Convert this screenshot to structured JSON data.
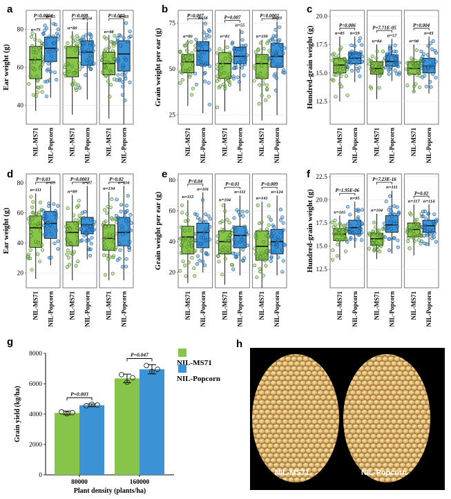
{
  "colors": {
    "ms71": "#86c44a",
    "popcorn": "#3b93d6",
    "ms71_dark": "#3b6b1e",
    "popcorn_dark": "#0f4a86",
    "grid": "#e6e6e6"
  },
  "chart_data": [
    {
      "panel": "a",
      "type": "box",
      "ylabel": "Ear weight (g)",
      "ylim": [
        30,
        90
      ],
      "yticks": [
        40,
        60,
        80
      ],
      "categories": [
        "NIL-MS71",
        "NIL-Popcorn"
      ],
      "groups": [
        {
          "p": "P=0.0004",
          "n": [
            "n=75",
            "n=55"
          ],
          "boxes": [
            {
              "min": 37,
              "q1": 54,
              "med": 64,
              "q3": 71,
              "max": 78
            },
            {
              "min": 44,
              "q1": 63,
              "med": 70,
              "q3": 76,
              "max": 85
            }
          ]
        },
        {
          "p": "P=0.008",
          "n": [
            "n=80",
            "n=54"
          ],
          "boxes": [
            {
              "min": 35,
              "q1": 55,
              "med": 65,
              "q3": 71,
              "max": 79
            },
            {
              "min": 43,
              "q1": 61,
              "med": 68,
              "q3": 74,
              "max": 84
            }
          ]
        },
        {
          "p": "P=0.002",
          "n": [
            "n=98",
            "n=83"
          ],
          "boxes": [
            {
              "min": 33,
              "q1": 56,
              "med": 62,
              "q3": 68,
              "max": 77
            },
            {
              "min": 30,
              "q1": 58,
              "med": 67,
              "q3": 74,
              "max": 85
            }
          ]
        }
      ]
    },
    {
      "panel": "b",
      "type": "box",
      "ylabel": "Grain weight per ear (g)",
      "ylim": [
        20,
        82
      ],
      "yticks": [
        25,
        50,
        75
      ],
      "categories": [
        "NIL-MS71",
        "NIL-Popcorn"
      ],
      "groups": [
        {
          "p": "P=0.007",
          "n": [
            "n=80",
            "n=58"
          ],
          "boxes": [
            {
              "min": 30,
              "q1": 48,
              "med": 54,
              "q3": 58,
              "max": 66
            },
            {
              "min": 26,
              "q1": 52,
              "med": 60,
              "q3": 65,
              "max": 76
            }
          ]
        },
        {
          "p": "P=0.007",
          "n": [
            "n=81",
            "n=55"
          ],
          "boxes": [
            {
              "min": 27,
              "q1": 45,
              "med": 53,
              "q3": 59,
              "max": 66
            },
            {
              "min": 38,
              "q1": 53,
              "med": 57,
              "q3": 62,
              "max": 72
            }
          ]
        },
        {
          "p": "P=0.0002",
          "n": [
            "n=100",
            "n=83"
          ],
          "boxes": [
            {
              "min": 22,
              "q1": 45,
              "med": 53,
              "q3": 58,
              "max": 66
            },
            {
              "min": 25,
              "q1": 51,
              "med": 57,
              "q3": 64,
              "max": 76
            }
          ]
        }
      ]
    },
    {
      "panel": "c",
      "type": "box",
      "ylabel": "Hundred-grain weight (g)",
      "ylim": [
        10.5,
        20.5
      ],
      "yticks": [
        12.5,
        15.0,
        17.5,
        20.0
      ],
      "categories": [
        "NIL-MS71",
        "NIL-Popcorn"
      ],
      "groups": [
        {
          "p": "P=0.006",
          "n": [
            "n=85",
            "n=59"
          ],
          "boxes": [
            {
              "min": 12.5,
              "q1": 15.0,
              "med": 15.7,
              "q3": 16.3,
              "max": 18.2
            },
            {
              "min": 14.2,
              "q1": 15.8,
              "med": 16.3,
              "q3": 16.8,
              "max": 18.2
            }
          ]
        },
        {
          "p": "P=7.71E-05",
          "n": [
            "n=84",
            "n=57"
          ],
          "boxes": [
            {
              "min": 12.7,
              "q1": 14.9,
              "med": 15.4,
              "q3": 16.0,
              "max": 17.5
            },
            {
              "min": 14.3,
              "q1": 15.6,
              "med": 16.0,
              "q3": 16.6,
              "max": 18.0
            }
          ]
        },
        {
          "p": "P=0.004",
          "n": [
            "n=98",
            "n=81"
          ],
          "boxes": [
            {
              "min": 13.3,
              "q1": 14.9,
              "med": 15.4,
              "q3": 16.0,
              "max": 17.5
            },
            {
              "min": 13.2,
              "q1": 15.0,
              "med": 15.6,
              "q3": 16.3,
              "max": 18.2
            }
          ]
        }
      ]
    },
    {
      "panel": "d",
      "type": "box",
      "ylabel": "Ear weight (g)",
      "ylim": [
        10,
        86
      ],
      "yticks": [
        20,
        40,
        60,
        80
      ],
      "categories": [
        "NIL-MS71",
        "NIL-Popcorn"
      ],
      "groups": [
        {
          "p": "P=0.03",
          "n": [
            "n=111",
            "n=99"
          ],
          "boxes": [
            {
              "min": 16,
              "q1": 37,
              "med": 50,
              "q3": 58,
              "max": 73
            },
            {
              "min": 25,
              "q1": 43,
              "med": 53,
              "q3": 61,
              "max": 78
            }
          ]
        },
        {
          "p": "P=0.0003",
          "n": [
            "n=89",
            "n=97"
          ],
          "boxes": [
            {
              "min": 15,
              "q1": 38,
              "med": 47,
              "q3": 54,
              "max": 72
            },
            {
              "min": 29,
              "q1": 46,
              "med": 52,
              "q3": 57,
              "max": 78
            }
          ]
        },
        {
          "p": "P=0.02",
          "n": [
            "n=134",
            "n=116"
          ],
          "boxes": [
            {
              "min": 15,
              "q1": 35,
              "med": 43,
              "q3": 52,
              "max": 74
            },
            {
              "min": 15,
              "q1": 38,
              "med": 47,
              "q3": 57,
              "max": 78
            }
          ]
        }
      ]
    },
    {
      "panel": "e",
      "type": "box",
      "ylabel": "Grain weight per ear (g)",
      "ylim": [
        10,
        84
      ],
      "yticks": [
        20,
        40,
        60,
        80
      ],
      "categories": [
        "NIL-MS71",
        "NIL-Popcorn"
      ],
      "groups": [
        {
          "p": "P=0.04",
          "n": [
            "n=112",
            "n=101"
          ],
          "boxes": [
            {
              "min": 13,
              "q1": 32,
              "med": 43,
              "q3": 50,
              "max": 67
            },
            {
              "min": 20,
              "q1": 36,
              "med": 46,
              "q3": 52,
              "max": 72
            }
          ]
        },
        {
          "p": "P=0.01",
          "n": [
            "n=104",
            "n=111"
          ],
          "boxes": [
            {
              "min": 12,
              "q1": 32,
              "med": 40,
              "q3": 47,
              "max": 65
            },
            {
              "min": 18,
              "q1": 36,
              "med": 44,
              "q3": 50,
              "max": 70
            }
          ]
        },
        {
          "p": "P=0.009",
          "n": [
            "n=141",
            "n=124"
          ],
          "boxes": [
            {
              "min": 10,
              "q1": 28,
              "med": 37,
              "q3": 47,
              "max": 66
            },
            {
              "min": 18,
              "q1": 32,
              "med": 40,
              "q3": 48,
              "max": 70
            }
          ]
        }
      ]
    },
    {
      "panel": "f",
      "type": "box",
      "ylabel": "Hundred-grain weight (g)",
      "ylim": [
        10.5,
        22.8
      ],
      "yticks": [
        12.5,
        15.0,
        17.5,
        20.0,
        22.5
      ],
      "categories": [
        "NIL-MS71",
        "NIL-Popcorn"
      ],
      "groups": [
        {
          "p": "P=1.95E-06",
          "n": [
            "n=105",
            "n=95"
          ],
          "boxes": [
            {
              "min": 13.5,
              "q1": 15.6,
              "med": 16.3,
              "q3": 16.9,
              "max": 18.3
            },
            {
              "min": 14.8,
              "q1": 16.3,
              "med": 17.0,
              "q3": 17.8,
              "max": 19.8
            }
          ]
        },
        {
          "p": "P=7.23E-16",
          "n": [
            "n=104",
            "n=111"
          ],
          "boxes": [
            {
              "min": 13.6,
              "q1": 15.1,
              "med": 15.8,
              "q3": 16.4,
              "max": 18.5
            },
            {
              "min": 14.2,
              "q1": 16.5,
              "med": 17.3,
              "q3": 18.3,
              "max": 21.0
            }
          ]
        },
        {
          "p": "P=0.02",
          "n": [
            "n=117",
            "n=114"
          ],
          "boxes": [
            {
              "min": 14.0,
              "q1": 16.0,
              "med": 16.8,
              "q3": 17.5,
              "max": 19.5
            },
            {
              "min": 15.0,
              "q1": 16.5,
              "med": 17.2,
              "q3": 17.8,
              "max": 19.5
            }
          ]
        }
      ]
    },
    {
      "panel": "g",
      "type": "bar",
      "title": "",
      "xlabel": "Plant density (plants/ha)",
      "ylabel": "Grain yield (kg/ha)",
      "ylim": [
        0,
        8000
      ],
      "yticks": [
        0,
        2000,
        4000,
        6000,
        8000
      ],
      "categories": [
        "80000",
        "160000"
      ],
      "series": [
        {
          "name": "NIL-MS71",
          "values": [
            4080,
            6350
          ],
          "errors": [
            120,
            280
          ],
          "points": [
            [
              4150,
              4020,
              4100
            ],
            [
              6600,
              6100,
              6400
            ]
          ]
        },
        {
          "name": "NIL-Popcorn",
          "values": [
            4580,
            6950
          ],
          "errors": [
            90,
            300
          ],
          "points": [
            [
              4550,
              4650,
              4600
            ],
            [
              7200,
              6800,
              6950
            ]
          ]
        }
      ],
      "annotations": [
        "P=0.003",
        "P=0.047"
      ],
      "legend": "top-right"
    }
  ],
  "photo": {
    "panel": "h",
    "labels": [
      "NIL-MS71",
      "NIL-Popcorn"
    ]
  }
}
